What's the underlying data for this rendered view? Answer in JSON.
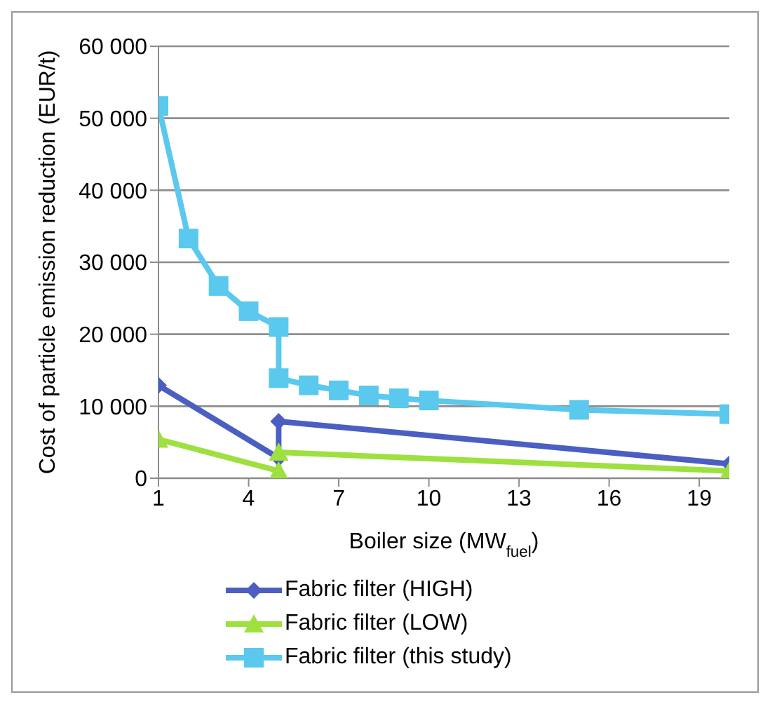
{
  "chart_data": {
    "type": "line",
    "xlabel": "Boiler size (MW$_{fuel}$)",
    "ylabel": "Cost of particle emission reduction (EUR/t)",
    "xlim": [
      1,
      20
    ],
    "xticks": [
      1,
      4,
      7,
      10,
      13,
      16,
      19
    ],
    "ylim": [
      0,
      60000
    ],
    "yticks": [
      0,
      {
        "value": 10000,
        "label": "10 000"
      },
      {
        "value": 20000,
        "label": "20 000"
      },
      {
        "value": 30000,
        "label": "30 000"
      },
      {
        "value": 40000,
        "label": "40 000"
      },
      {
        "value": 50000,
        "label": "50 000"
      },
      {
        "value": 60000,
        "label": "60 000"
      }
    ],
    "grid": "y",
    "legend": "bottom",
    "series": [
      {
        "name": "Fabric filter (HIGH)",
        "color": "#4a5fc1",
        "marker": "diamond",
        "x": [
          1,
          5,
          5,
          20
        ],
        "values": [
          12900,
          2800,
          7900,
          2000
        ]
      },
      {
        "name": "Fabric filter (LOW)",
        "color": "#9de040",
        "marker": "triangle",
        "x": [
          1,
          5,
          5,
          20
        ],
        "values": [
          5400,
          1000,
          3600,
          1000
        ]
      },
      {
        "name": "Fabric filter (this study)",
        "color": "#5bc8ee",
        "marker": "square",
        "x": [
          1,
          2,
          3,
          4,
          5,
          5,
          6,
          7,
          8,
          9,
          10,
          15,
          20
        ],
        "values": [
          51700,
          33300,
          26700,
          23200,
          21000,
          13900,
          12900,
          12200,
          11500,
          11100,
          10800,
          9500,
          8900
        ]
      }
    ]
  }
}
